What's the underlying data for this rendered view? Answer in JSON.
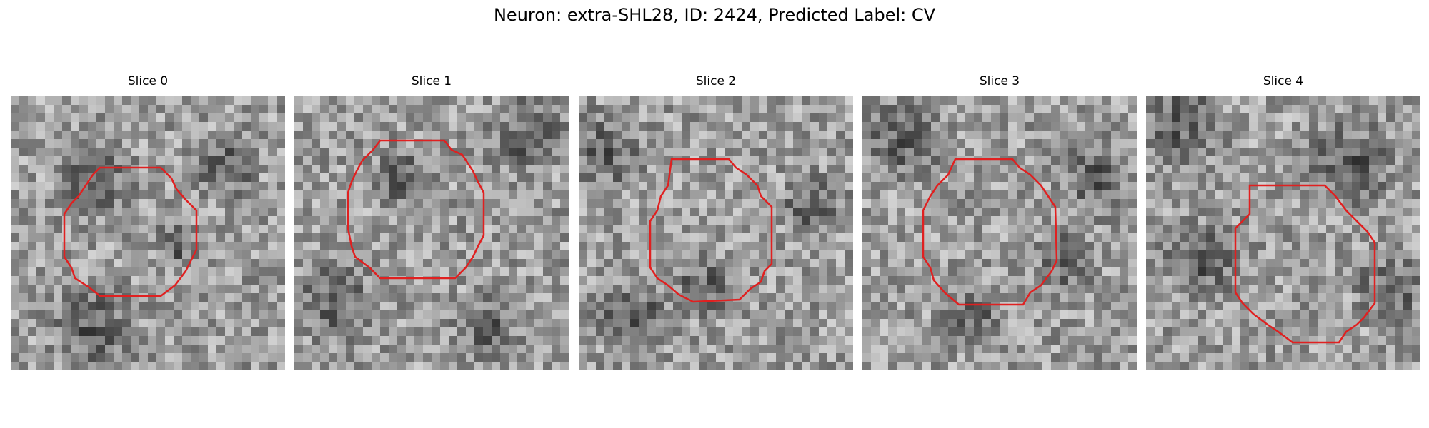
{
  "figure": {
    "title": "Neuron: extra-SHL28, ID: 2424, Predicted Label: CV",
    "contour_color": "#e02020",
    "slices": [
      {
        "label": "Slice 0"
      },
      {
        "label": "Slice 1"
      },
      {
        "label": "Slice 2"
      },
      {
        "label": "Slice 3"
      },
      {
        "label": "Slice 4"
      }
    ]
  }
}
